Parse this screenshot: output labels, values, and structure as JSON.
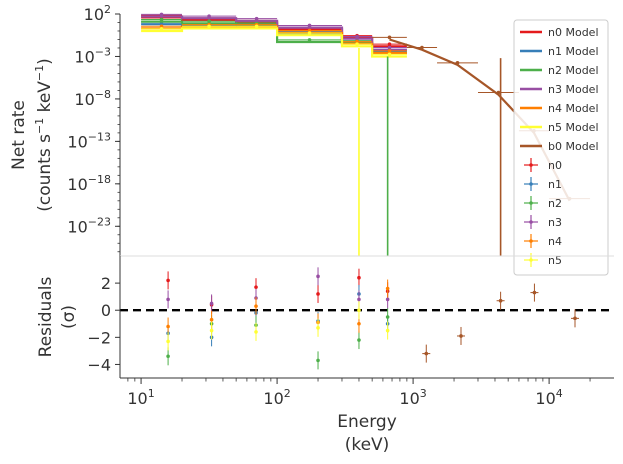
{
  "chart_data": [
    {
      "type": "scatter",
      "panel": "top",
      "ylabel_line1": "Net rate",
      "ylabel_line2": "(counts s",
      "ylabel_sup1": "−1",
      "ylabel_mid": " keV",
      "ylabel_sup2": "−1",
      "ylabel_end": ")",
      "yscale": "log",
      "xscale": "log",
      "xlim": [
        7,
        30000
      ],
      "ylim_exp": [
        -26.5,
        2
      ],
      "yticks": [
        {
          "exp": 2,
          "base": "10",
          "sup": "2"
        },
        {
          "exp": -3,
          "base": "10",
          "sup": "−3"
        },
        {
          "exp": -8,
          "base": "10",
          "sup": "−8"
        },
        {
          "exp": -13,
          "base": "10",
          "sup": "−13"
        },
        {
          "exp": -18,
          "base": "10",
          "sup": "−18"
        },
        {
          "exp": -23,
          "base": "10",
          "sup": "−23"
        }
      ],
      "legend_position": "upper-right",
      "legend_models": [
        {
          "label": "n0 Model",
          "color": "#e41a1c"
        },
        {
          "label": "n1 Model",
          "color": "#377eb8"
        },
        {
          "label": "n2 Model",
          "color": "#4daf4a"
        },
        {
          "label": "n3 Model",
          "color": "#984ea3"
        },
        {
          "label": "n4 Model",
          "color": "#ff7f00"
        },
        {
          "label": "n5 Model",
          "color": "#ffff33"
        },
        {
          "label": "b0 Model",
          "color": "#a65628"
        }
      ],
      "legend_data": [
        {
          "label": "n0",
          "color": "#e41a1c"
        },
        {
          "label": "n1",
          "color": "#377eb8"
        },
        {
          "label": "n2",
          "color": "#4daf4a"
        },
        {
          "label": "n3",
          "color": "#984ea3"
        },
        {
          "label": "n4",
          "color": "#ff7f00"
        },
        {
          "label": "n5",
          "color": "#ffff33"
        }
      ],
      "series": [
        {
          "detector": "n0",
          "color": "#e41a1c",
          "bins": [
            [
              10,
              20,
              1.6
            ],
            [
              20,
              50,
              1.3
            ],
            [
              50,
              100,
              1.0
            ],
            [
              100,
              300,
              0.2
            ],
            [
              300,
              500,
              -0.8
            ],
            [
              500,
              900,
              -1.8
            ]
          ]
        },
        {
          "detector": "n1",
          "color": "#377eb8",
          "bins": [
            [
              10,
              20,
              0.8
            ],
            [
              20,
              50,
              0.6
            ],
            [
              50,
              100,
              0.4
            ],
            [
              100,
              300,
              -0.3
            ],
            [
              300,
              500,
              -1.4
            ],
            [
              500,
              900,
              -2.5
            ]
          ]
        },
        {
          "detector": "n2",
          "color": "#4daf4a",
          "bins": [
            [
              10,
              20,
              1.1
            ],
            [
              20,
              50,
              0.9
            ],
            [
              50,
              100,
              0.8
            ],
            [
              100,
              300,
              -1.3
            ],
            [
              300,
              500,
              -1.4
            ],
            [
              500,
              900,
              -2.6
            ]
          ]
        },
        {
          "detector": "n3",
          "color": "#984ea3",
          "bins": [
            [
              10,
              20,
              1.7
            ],
            [
              20,
              50,
              1.5
            ],
            [
              50,
              100,
              1.2
            ],
            [
              100,
              300,
              0.4
            ],
            [
              300,
              500,
              -0.9
            ],
            [
              500,
              900,
              -2.2
            ]
          ]
        },
        {
          "detector": "n4",
          "color": "#ff7f00",
          "bins": [
            [
              10,
              20,
              0.3
            ],
            [
              20,
              50,
              0.5
            ],
            [
              50,
              100,
              0.5
            ],
            [
              100,
              300,
              -0.2
            ],
            [
              300,
              500,
              -1.5
            ],
            [
              500,
              900,
              -2.6
            ]
          ]
        },
        {
          "detector": "n5",
          "color": "#ffff33",
          "bins": [
            [
              10,
              20,
              0.0
            ],
            [
              20,
              50,
              0.3
            ],
            [
              50,
              100,
              0.3
            ],
            [
              100,
              300,
              -0.5
            ],
            [
              300,
              500,
              -1.8
            ],
            [
              500,
              900,
              -3.0
            ]
          ]
        },
        {
          "detector": "b0",
          "color": "#a65628",
          "bins": [
            [
              500,
              900,
              -1.0
            ],
            [
              900,
              1500,
              -2.2
            ],
            [
              1500,
              3000,
              -4.0
            ],
            [
              3000,
              6000,
              -7.5
            ],
            [
              6000,
              10000,
              -12.0
            ],
            [
              10000,
              20000,
              -20.0
            ]
          ]
        }
      ],
      "drops": [
        {
          "color": "#ffff33",
          "x": 400,
          "from": -2.0
        },
        {
          "color": "#4daf4a",
          "x": 650,
          "from": -3.0
        },
        {
          "color": "#a65628",
          "x": 4400,
          "from": -3.2
        }
      ],
      "grid": false
    },
    {
      "type": "scatter",
      "panel": "bottom",
      "xlabel_line1": "Energy",
      "xlabel_line2": "(keV)",
      "ylabel_line1": "Residuals",
      "ylabel_line2": "(σ)",
      "xscale": "log",
      "xlim": [
        7,
        30000
      ],
      "ylim": [
        -5,
        4
      ],
      "yticks": [
        2,
        0,
        -2,
        -4
      ],
      "xticks": [
        {
          "value": 10,
          "base": "10",
          "sup": "1"
        },
        {
          "value": 100,
          "base": "10",
          "sup": "2"
        },
        {
          "value": 1000,
          "base": "10",
          "sup": "3"
        },
        {
          "value": 10000,
          "base": "10",
          "sup": "4"
        }
      ],
      "zero_line": true,
      "series": [
        {
          "detector": "n0",
          "color": "#e41a1c",
          "points": [
            [
              15.8,
              2.2
            ],
            [
              33,
              0.4
            ],
            [
              70,
              1.7
            ],
            [
              200,
              1.2
            ],
            [
              400,
              2.4
            ],
            [
              650,
              1.4
            ]
          ]
        },
        {
          "detector": "n1",
          "color": "#377eb8",
          "points": [
            [
              15.8,
              -1.7
            ],
            [
              33,
              -2.0
            ],
            [
              70,
              -0.2
            ],
            [
              200,
              -0.8
            ],
            [
              400,
              1.2
            ],
            [
              650,
              -1.0
            ]
          ]
        },
        {
          "detector": "n2",
          "color": "#4daf4a",
          "points": [
            [
              15.8,
              -3.4
            ],
            [
              33,
              -1.0
            ],
            [
              70,
              -1.1
            ],
            [
              200,
              -3.7
            ],
            [
              400,
              -2.2
            ],
            [
              650,
              -0.5
            ]
          ]
        },
        {
          "detector": "n3",
          "color": "#984ea3",
          "points": [
            [
              15.8,
              0.8
            ],
            [
              33,
              0.5
            ],
            [
              70,
              0.9
            ],
            [
              200,
              2.5
            ],
            [
              400,
              0.8
            ],
            [
              650,
              0.8
            ]
          ]
        },
        {
          "detector": "n4",
          "color": "#ff7f00",
          "points": [
            [
              15.8,
              -1.2
            ],
            [
              33,
              -0.7
            ],
            [
              70,
              0.3
            ],
            [
              200,
              -0.9
            ],
            [
              400,
              -1.0
            ],
            [
              650,
              1.6
            ]
          ]
        },
        {
          "detector": "n5",
          "color": "#ffff33",
          "points": [
            [
              15.8,
              -2.3
            ],
            [
              33,
              -1.5
            ],
            [
              70,
              -1.6
            ],
            [
              200,
              -1.3
            ],
            [
              400,
              0.0
            ],
            [
              650,
              -1.5
            ]
          ]
        },
        {
          "detector": "b0",
          "color": "#a65628",
          "points": [
            [
              1250,
              -3.2
            ],
            [
              2250,
              -1.9
            ],
            [
              4400,
              0.7
            ],
            [
              7800,
              1.3
            ],
            [
              15500,
              -0.6
            ]
          ]
        }
      ]
    }
  ]
}
